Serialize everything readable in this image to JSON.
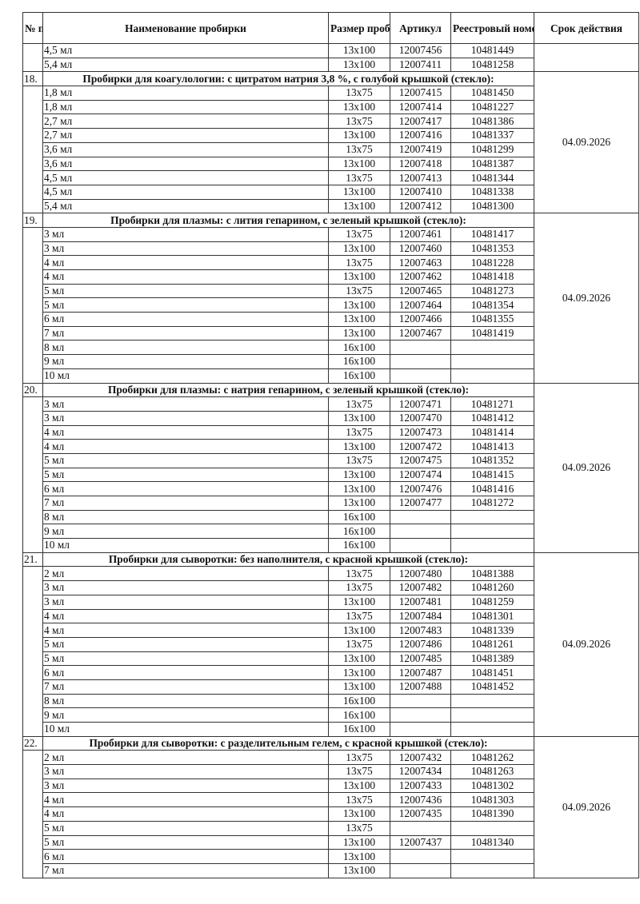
{
  "header": {
    "num": "№ п/п",
    "name": "Наименование пробирки",
    "size": "Размер пробирки",
    "article": "Артикул",
    "registry": "Реестровый номер",
    "expiry": "Срок действия"
  },
  "continuation": {
    "expiry": "",
    "rows": [
      {
        "name": "4,5 мл",
        "size": "13х100",
        "article": "12007456",
        "registry": "10481449"
      },
      {
        "name": "5,4 мл",
        "size": "13х100",
        "article": "12007411",
        "registry": "10481258"
      }
    ]
  },
  "groups": [
    {
      "num": "18.",
      "title": "Пробирки для коагулологии: с цитратом натрия 3,8 %, с голубой крышкой (стекло):",
      "expiry": "04.09.2026",
      "rows": [
        {
          "name": "1,8 мл",
          "size": "13х75",
          "article": "12007415",
          "registry": "10481450"
        },
        {
          "name": "1,8 мл",
          "size": "13х100",
          "article": "12007414",
          "registry": "10481227"
        },
        {
          "name": "2,7 мл",
          "size": "13х75",
          "article": "12007417",
          "registry": "10481386"
        },
        {
          "name": "2,7 мл",
          "size": "13х100",
          "article": "12007416",
          "registry": "10481337"
        },
        {
          "name": "3,6 мл",
          "size": "13х75",
          "article": "12007419",
          "registry": "10481299"
        },
        {
          "name": "3,6 мл",
          "size": "13х100",
          "article": "12007418",
          "registry": "10481387"
        },
        {
          "name": "4,5 мл",
          "size": "13х75",
          "article": "12007413",
          "registry": "10481344"
        },
        {
          "name": "4,5 мл",
          "size": "13х100",
          "article": "12007410",
          "registry": "10481338"
        },
        {
          "name": "5,4 мл",
          "size": "13х100",
          "article": "12007412",
          "registry": "10481300"
        }
      ]
    },
    {
      "num": "19.",
      "title": "Пробирки для плазмы: с лития гепарином, с зеленый крышкой (стекло):",
      "expiry": "04.09.2026",
      "rows": [
        {
          "name": "3 мл",
          "size": "13х75",
          "article": "12007461",
          "registry": "10481417"
        },
        {
          "name": "3 мл",
          "size": "13х100",
          "article": "12007460",
          "registry": "10481353"
        },
        {
          "name": "4 мл",
          "size": "13х75",
          "article": "12007463",
          "registry": "10481228"
        },
        {
          "name": "4 мл",
          "size": "13х100",
          "article": "12007462",
          "registry": "10481418"
        },
        {
          "name": "5 мл",
          "size": "13х75",
          "article": "12007465",
          "registry": "10481273"
        },
        {
          "name": "5 мл",
          "size": "13х100",
          "article": "12007464",
          "registry": "10481354"
        },
        {
          "name": "6 мл",
          "size": "13х100",
          "article": "12007466",
          "registry": "10481355"
        },
        {
          "name": "7 мл",
          "size": "13х100",
          "article": "12007467",
          "registry": "10481419"
        },
        {
          "name": "8 мл",
          "size": "16х100",
          "article": "",
          "registry": ""
        },
        {
          "name": "9 мл",
          "size": "16х100",
          "article": "",
          "registry": ""
        },
        {
          "name": "10 мл",
          "size": "16х100",
          "article": "",
          "registry": ""
        }
      ]
    },
    {
      "num": "20.",
      "title": "Пробирки для плазмы: с натрия гепарином, с зеленый крышкой (стекло):",
      "expiry": "04.09.2026",
      "rows": [
        {
          "name": "3 мл",
          "size": "13х75",
          "article": "12007471",
          "registry": "10481271"
        },
        {
          "name": "3 мл",
          "size": "13х100",
          "article": "12007470",
          "registry": "10481412"
        },
        {
          "name": "4 мл",
          "size": "13х75",
          "article": "12007473",
          "registry": "10481414"
        },
        {
          "name": "4 мл",
          "size": "13х100",
          "article": "12007472",
          "registry": "10481413"
        },
        {
          "name": "5 мл",
          "size": "13х75",
          "article": "12007475",
          "registry": "10481352"
        },
        {
          "name": "5 мл",
          "size": "13х100",
          "article": "12007474",
          "registry": "10481415"
        },
        {
          "name": "6 мл",
          "size": "13х100",
          "article": "12007476",
          "registry": "10481416"
        },
        {
          "name": "7 мл",
          "size": "13х100",
          "article": "12007477",
          "registry": "10481272"
        },
        {
          "name": "8 мл",
          "size": "16х100",
          "article": "",
          "registry": ""
        },
        {
          "name": "9 мл",
          "size": "16х100",
          "article": "",
          "registry": ""
        },
        {
          "name": "10 мл",
          "size": "16х100",
          "article": "",
          "registry": ""
        }
      ]
    },
    {
      "num": "21.",
      "title": "Пробирки для сыворотки: без наполнителя, с красной крышкой (стекло):",
      "expiry": "04.09.2026",
      "rows": [
        {
          "name": "2 мл",
          "size": "13х75",
          "article": "12007480",
          "registry": "10481388"
        },
        {
          "name": "3 мл",
          "size": "13х75",
          "article": "12007482",
          "registry": "10481260"
        },
        {
          "name": "3 мл",
          "size": "13х100",
          "article": "12007481",
          "registry": "10481259"
        },
        {
          "name": "4 мл",
          "size": "13х75",
          "article": "12007484",
          "registry": "10481301"
        },
        {
          "name": "4 мл",
          "size": "13х100",
          "article": "12007483",
          "registry": "10481339"
        },
        {
          "name": "5 мл",
          "size": "13х75",
          "article": "12007486",
          "registry": "10481261"
        },
        {
          "name": "5 мл",
          "size": "13х100",
          "article": "12007485",
          "registry": "10481389"
        },
        {
          "name": "6 мл",
          "size": "13х100",
          "article": "12007487",
          "registry": "10481451"
        },
        {
          "name": "7 мл",
          "size": "13х100",
          "article": "12007488",
          "registry": "10481452"
        },
        {
          "name": "8 мл",
          "size": "16х100",
          "article": "",
          "registry": ""
        },
        {
          "name": "9 мл",
          "size": "16х100",
          "article": "",
          "registry": ""
        },
        {
          "name": "10 мл",
          "size": "16х100",
          "article": "",
          "registry": ""
        }
      ]
    },
    {
      "num": "22.",
      "title": "Пробирки для сыворотки: с разделительным гелем, с красной крышкой (стекло):",
      "expiry": "04.09.2026",
      "rows": [
        {
          "name": "2 мл",
          "size": "13х75",
          "article": "12007432",
          "registry": "10481262"
        },
        {
          "name": "3 мл",
          "size": "13х75",
          "article": "12007434",
          "registry": "10481263"
        },
        {
          "name": "3 мл",
          "size": "13х100",
          "article": "12007433",
          "registry": "10481302"
        },
        {
          "name": "4 мл",
          "size": "13х75",
          "article": "12007436",
          "registry": "10481303"
        },
        {
          "name": "4 мл",
          "size": "13х100",
          "article": "12007435",
          "registry": "10481390"
        },
        {
          "name": "5 мл",
          "size": "13х75",
          "article": "",
          "registry": ""
        },
        {
          "name": "5 мл",
          "size": "13х100",
          "article": "12007437",
          "registry": "10481340"
        },
        {
          "name": "6 мл",
          "size": "13х100",
          "article": "",
          "registry": ""
        },
        {
          "name": "7 мл",
          "size": "13х100",
          "article": "",
          "registry": ""
        }
      ]
    }
  ]
}
